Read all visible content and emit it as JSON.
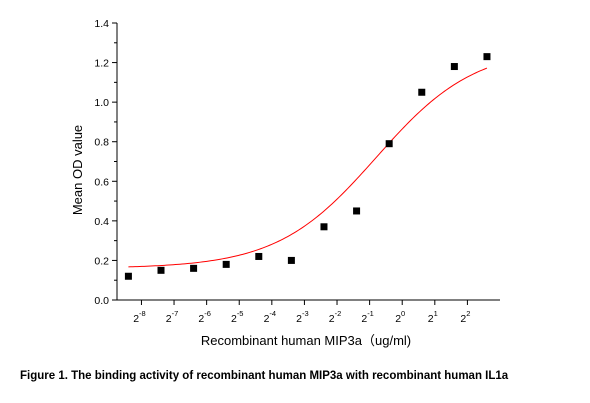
{
  "chart_data": {
    "type": "scatter",
    "title": "",
    "xlabel": "Recombinant human  MIP3a（ug/ml)",
    "ylabel": "Mean OD value",
    "x_scale": "log2",
    "x_tick_exponents": [
      -8,
      -7,
      -6,
      -5,
      -4,
      -3,
      -2,
      -1,
      0,
      1,
      2
    ],
    "x_tick_base": "2",
    "ylim": [
      0.0,
      1.4
    ],
    "y_ticks": [
      "0.0",
      "0.2",
      "0.4",
      "0.6",
      "0.8",
      "1.0",
      "1.2",
      "1.4"
    ],
    "grid": false,
    "series": [
      {
        "marker": "square",
        "color": "#000000",
        "x_exponents": [
          -8.4,
          -7.4,
          -6.4,
          -5.4,
          -4.4,
          -3.4,
          -2.4,
          -1.4,
          -0.4,
          0.6,
          1.6,
          2.6
        ],
        "values": [
          0.12,
          0.15,
          0.16,
          0.18,
          0.22,
          0.2,
          0.37,
          0.45,
          0.79,
          1.05,
          1.18,
          1.23
        ]
      }
    ],
    "fit_curve": {
      "color": "#ff0000",
      "bottom": 0.16,
      "top": 1.28,
      "ec50_exponent": -0.8,
      "hill": 0.95
    }
  },
  "caption": "Figure 1. The binding activity of recombinant human MIP3a with recombinant human IL1a"
}
